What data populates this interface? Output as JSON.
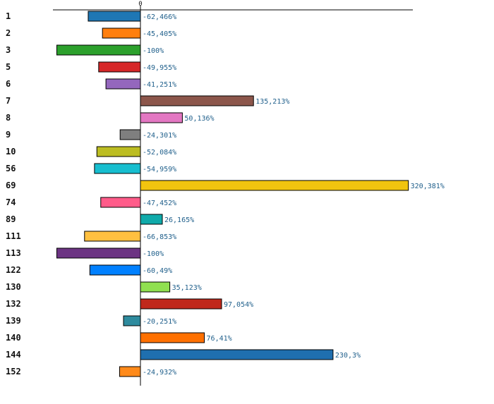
{
  "chart_data": {
    "type": "bar",
    "orientation": "horizontal",
    "title": "",
    "xlabel": "",
    "ylabel": "",
    "zero_tick_label": "0",
    "categories": [
      "1",
      "2",
      "3",
      "5",
      "6",
      "7",
      "8",
      "9",
      "10",
      "56",
      "69",
      "74",
      "89",
      "111",
      "113",
      "122",
      "130",
      "132",
      "139",
      "140",
      "144",
      "152"
    ],
    "values": [
      -62.466,
      -45.405,
      -100,
      -49.955,
      -41.251,
      135.213,
      50.136,
      -24.301,
      -52.084,
      -54.959,
      320.381,
      -47.452,
      26.165,
      -66.853,
      -100,
      -60.49,
      35.123,
      97.054,
      -20.251,
      76.41,
      230.3,
      -24.932
    ],
    "value_labels": [
      "-62,466%",
      "-45,405%",
      "-100%",
      "-49,955%",
      "-41,251%",
      "135,213%",
      "50,136%",
      "-24,301%",
      "-52,084%",
      "-54,959%",
      "320,381%",
      "-47,452%",
      "26,165%",
      "-66,853%",
      "-100%",
      "-60,49%",
      "35,123%",
      "97,054%",
      "-20,251%",
      "76,41%",
      "230,3%",
      "-24,932%"
    ],
    "colors": [
      "#1f77b4",
      "#ff7f0e",
      "#2ca02c",
      "#d62728",
      "#9467bd",
      "#8c564b",
      "#e377c2",
      "#7f7f7f",
      "#bcbd22",
      "#17becf",
      "#f1c40f",
      "#ff5c8a",
      "#10aaaa",
      "#ffc040",
      "#6c3483",
      "#0080ff",
      "#90e050",
      "#c0281c",
      "#2e8b9e",
      "#ff7000",
      "#1f6faf",
      "#ff8a1a"
    ],
    "xlim": [
      -100,
      325
    ],
    "label_color": "#1f5f8b",
    "grid": false,
    "legend": "none"
  }
}
